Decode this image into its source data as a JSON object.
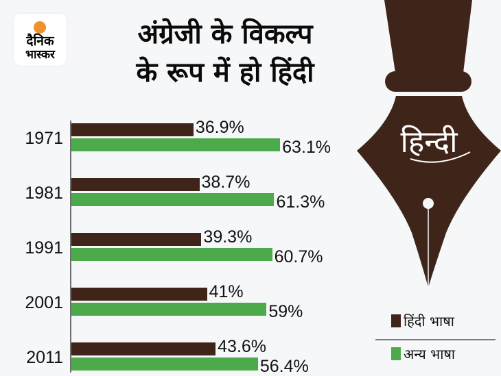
{
  "brand": {
    "line1": "दैनिक",
    "line2": "भास्कर",
    "sun_color": "#f0922b"
  },
  "title": {
    "line1": "अंग्रेजी के विकल्प",
    "line2": "के रूप में हो हिंदी"
  },
  "pen": {
    "label": "हिन्दी",
    "color": "#3f2519"
  },
  "legend": [
    {
      "label": "हिंदी भाषा",
      "color": "#3f2519"
    },
    {
      "label": "अन्य भाषा",
      "color": "#4daa4a"
    }
  ],
  "chart_data": {
    "type": "bar",
    "orientation": "horizontal",
    "title": "अंग्रेजी के विकल्प के रूप में हो हिंदी",
    "categories": [
      "1971",
      "1981",
      "1991",
      "2001",
      "2011"
    ],
    "series": [
      {
        "name": "हिंदी भाषा",
        "color": "#3f2519",
        "values": [
          36.9,
          38.7,
          39.3,
          41,
          43.6
        ],
        "labels": [
          "36.9%",
          "38.7%",
          "39.3%",
          "41%",
          "43.6%"
        ]
      },
      {
        "name": "अन्य भाषा",
        "color": "#4daa4a",
        "values": [
          63.1,
          61.3,
          60.7,
          59,
          56.4
        ],
        "labels": [
          "63.1%",
          "61.3%",
          "60.7%",
          "59%",
          "56.4%"
        ]
      }
    ],
    "xlabel": "",
    "ylabel": "",
    "xlim": [
      0,
      100
    ],
    "grid": false,
    "legend_position": "right-bottom"
  }
}
